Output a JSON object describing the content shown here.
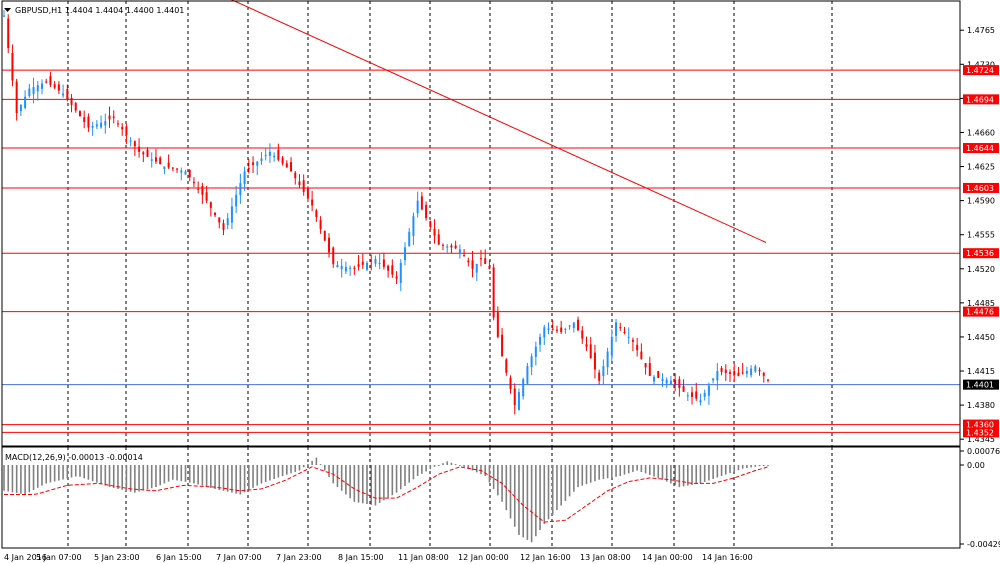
{
  "chart_data": [
    {
      "type": "candlestick",
      "title": "GBPUSD,H1  1.4404 1.4404 1.4400 1.4401",
      "symbol": "GBPUSD",
      "timeframe": "H1",
      "ohlc_readout": "1.4404 1.4404 1.4400 1.4401",
      "y_ticks": [
        "1.4765",
        "1.4730",
        "1.4695",
        "1.4660",
        "1.4625",
        "1.4590",
        "1.4555",
        "1.4520",
        "1.4485",
        "1.4450",
        "1.4415",
        "1.4380",
        "1.4345"
      ],
      "ylim": [
        1.4338,
        1.4795
      ],
      "x_ticks": [
        "4 Jan 2016",
        "5 Jan 07:00",
        "5 Jan 23:00",
        "6 Jan 15:00",
        "7 Jan 07:00",
        "7 Jan 23:00",
        "8 Jan 15:00",
        "11 Jan 08:00",
        "12 Jan 00:00",
        "12 Jan 16:00",
        "13 Jan 08:00",
        "14 Jan 00:00",
        "14 Jan 16:00"
      ],
      "horizontal_levels": [
        {
          "label": "1.4724",
          "value": 1.4724,
          "color": "#ff0000"
        },
        {
          "label": "1.4694",
          "value": 1.4694,
          "color": "#ff0000"
        },
        {
          "label": "1.4644",
          "value": 1.4644,
          "color": "#ff0000"
        },
        {
          "label": "1.4603",
          "value": 1.4603,
          "color": "#ff0000"
        },
        {
          "label": "1.4536",
          "value": 1.4536,
          "color": "#ff0000"
        },
        {
          "label": "1.4476",
          "value": 1.4476,
          "color": "#ff0000"
        },
        {
          "label": "1.4360",
          "value": 1.436,
          "color": "#ff0000"
        },
        {
          "label": "1.4352",
          "value": 1.4352,
          "color": "#ff0000"
        }
      ],
      "current_price": {
        "label": "1.4401",
        "value": 1.4401,
        "color": "#4a6fd8"
      },
      "moving_average": {
        "color": "#ff0000",
        "start": 1.4798,
        "end": 1.4547
      },
      "close_path": [
        [
          0,
          1.478
        ],
        [
          6,
          1.468
        ],
        [
          12,
          1.4705
        ],
        [
          20,
          1.4712
        ],
        [
          28,
          1.47
        ],
        [
          40,
          1.4665
        ],
        [
          52,
          1.4675
        ],
        [
          64,
          1.464
        ],
        [
          76,
          1.4625
        ],
        [
          86,
          1.462
        ],
        [
          96,
          1.459
        ],
        [
          104,
          1.456
        ],
        [
          114,
          1.462
        ],
        [
          126,
          1.464
        ],
        [
          136,
          1.462
        ],
        [
          146,
          1.4585
        ],
        [
          156,
          1.4525
        ],
        [
          166,
          1.452
        ],
        [
          176,
          1.453
        ],
        [
          186,
          1.451
        ],
        [
          196,
          1.459
        ],
        [
          206,
          1.4545
        ],
        [
          216,
          1.454
        ],
        [
          222,
          1.452
        ],
        [
          226,
          1.453
        ],
        [
          230,
          1.452
        ],
        [
          232,
          1.447
        ],
        [
          236,
          1.443
        ],
        [
          242,
          1.438
        ],
        [
          248,
          1.442
        ],
        [
          256,
          1.446
        ],
        [
          264,
          1.4455
        ],
        [
          270,
          1.4465
        ],
        [
          276,
          1.444
        ],
        [
          282,
          1.4405
        ],
        [
          290,
          1.4465
        ],
        [
          298,
          1.4445
        ],
        [
          306,
          1.441
        ],
        [
          316,
          1.4405
        ],
        [
          324,
          1.439
        ],
        [
          330,
          1.4385
        ],
        [
          338,
          1.4415
        ],
        [
          348,
          1.441
        ],
        [
          356,
          1.442
        ],
        [
          362,
          1.4405
        ]
      ],
      "candle_colors": {
        "up": "#1e90ff",
        "down": "#ff0000"
      },
      "grid": true,
      "grid_style": "dashed vertical"
    },
    {
      "type": "bar",
      "title": "MACD(12,26,9) -0.00013 -0.00014",
      "indicator": "MACD(12,26,9)",
      "values_readout": "-0.00013 -0.00014",
      "y_ticks": [
        "0.00076",
        "0.00",
        "-0.00429"
      ],
      "ylim": [
        -0.00429,
        0.00076
      ],
      "histogram_path": [
        [
          0,
          -0.0014
        ],
        [
          10,
          -0.0016
        ],
        [
          20,
          -0.001
        ],
        [
          35,
          -0.0006
        ],
        [
          50,
          -0.0012
        ],
        [
          62,
          -0.0015
        ],
        [
          72,
          -0.0012
        ],
        [
          80,
          -0.0008
        ],
        [
          90,
          -0.001
        ],
        [
          100,
          -0.0013
        ],
        [
          112,
          -0.0016
        ],
        [
          122,
          -0.001
        ],
        [
          132,
          -0.0006
        ],
        [
          140,
          -0.0003
        ],
        [
          148,
          0.0004
        ],
        [
          156,
          -0.001
        ],
        [
          166,
          -0.002
        ],
        [
          176,
          -0.0022
        ],
        [
          186,
          -0.0015
        ],
        [
          196,
          -0.0006
        ],
        [
          204,
          -0.0001
        ],
        [
          210,
          0.0002
        ],
        [
          218,
          -0.0001
        ],
        [
          228,
          -0.0006
        ],
        [
          236,
          -0.002
        ],
        [
          244,
          -0.0038
        ],
        [
          250,
          -0.0042
        ],
        [
          256,
          -0.0032
        ],
        [
          264,
          -0.0022
        ],
        [
          272,
          -0.0012
        ],
        [
          282,
          -0.0008
        ],
        [
          292,
          -0.0006
        ],
        [
          300,
          -0.0003
        ],
        [
          310,
          -0.0007
        ],
        [
          320,
          -0.0012
        ],
        [
          330,
          -0.001
        ],
        [
          340,
          -0.0006
        ],
        [
          350,
          -0.0002
        ],
        [
          362,
          0.0
        ]
      ],
      "signal_path": [
        [
          0,
          -0.0016
        ],
        [
          15,
          -0.0016
        ],
        [
          30,
          -0.0011
        ],
        [
          45,
          -0.001
        ],
        [
          60,
          -0.0013
        ],
        [
          72,
          -0.0014
        ],
        [
          85,
          -0.0011
        ],
        [
          100,
          -0.0012
        ],
        [
          112,
          -0.0014
        ],
        [
          122,
          -0.0013
        ],
        [
          134,
          -0.0008
        ],
        [
          146,
          -0.0001
        ],
        [
          156,
          -0.0005
        ],
        [
          166,
          -0.0013
        ],
        [
          176,
          -0.0018
        ],
        [
          186,
          -0.0018
        ],
        [
          196,
          -0.0012
        ],
        [
          206,
          -0.0005
        ],
        [
          216,
          -0.0001
        ],
        [
          226,
          -0.0003
        ],
        [
          236,
          -0.001
        ],
        [
          246,
          -0.0022
        ],
        [
          256,
          -0.0031
        ],
        [
          266,
          -0.003
        ],
        [
          276,
          -0.0022
        ],
        [
          286,
          -0.0014
        ],
        [
          296,
          -0.0009
        ],
        [
          306,
          -0.0007
        ],
        [
          316,
          -0.0008
        ],
        [
          326,
          -0.001
        ],
        [
          336,
          -0.001
        ],
        [
          346,
          -0.0007
        ],
        [
          356,
          -0.0003
        ],
        [
          362,
          -0.0001
        ]
      ],
      "histogram_color": "#808080",
      "signal_color": "#ff0000"
    }
  ]
}
